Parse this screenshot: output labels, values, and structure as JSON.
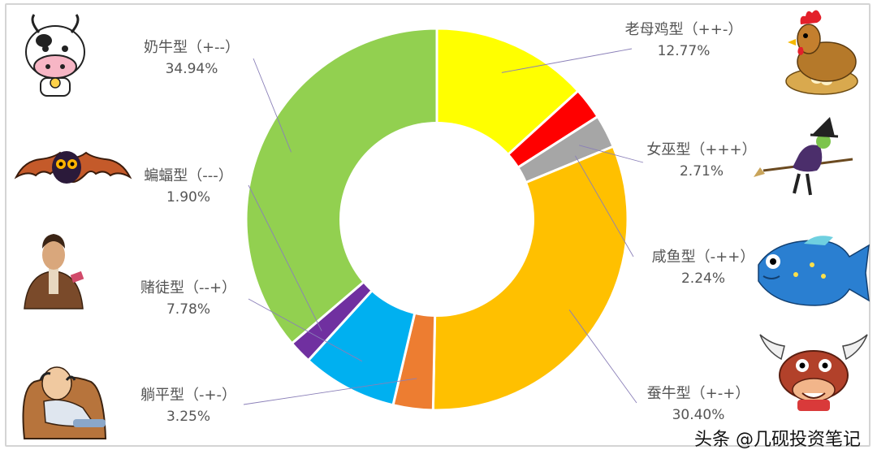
{
  "chart_data": {
    "type": "donut",
    "title": "",
    "series": [
      {
        "name": "老母鸡型（++-）",
        "value": 12.77,
        "label": "12.77%",
        "color": "#ffff00",
        "icon": "hen-icon"
      },
      {
        "name": "",
        "value": 2.6,
        "label": "",
        "color": "#ff0000"
      },
      {
        "name": "女巫型（+++）",
        "value": 2.71,
        "label": "2.71%",
        "color": "#a6a6a6",
        "icon": "witch-icon"
      },
      {
        "name": "蚕牛型（+-+）",
        "value": 30.4,
        "label": "30.40%",
        "color": "#ffc000",
        "icon": "bull-icon"
      },
      {
        "name": "躺平型（-+-）",
        "value": 3.25,
        "label": "3.25%",
        "color": "#ed7d31",
        "icon": "lazy-man-icon"
      },
      {
        "name": "赌徒型（--+）",
        "value": 7.78,
        "label": "7.78%",
        "color": "#00b0f0",
        "icon": "gambler-icon"
      },
      {
        "name": "蝙蝠型（---）",
        "value": 1.9,
        "label": "1.90%",
        "color": "#7030a0",
        "icon": "bat-icon"
      },
      {
        "name": "奶牛型（+--）",
        "value": 34.94,
        "label": "34.94%",
        "color": "#92d050",
        "icon": "cow-icon"
      }
    ],
    "hidden_series_note_index": 3,
    "extra": {
      "salted_fish": {
        "name": "咸鱼型（-++）",
        "label": "2.24%",
        "icon": "fish-icon"
      }
    }
  },
  "watermark": "头条 @几砚投资笔记"
}
